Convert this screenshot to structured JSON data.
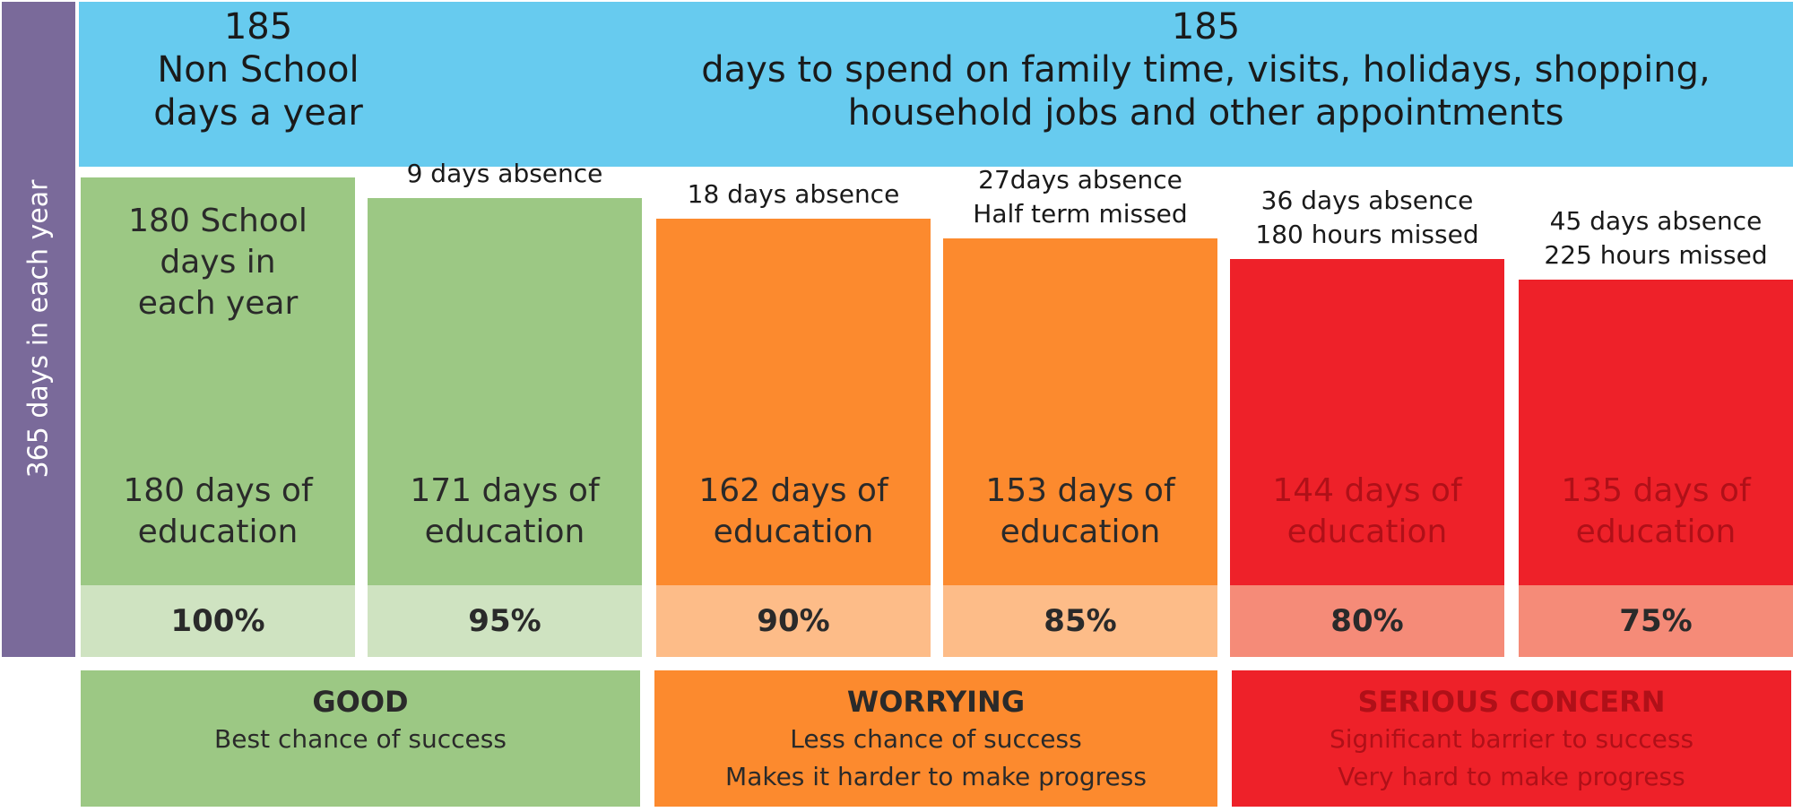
{
  "chart_data": {
    "type": "bar",
    "side_label": "365 days in each year",
    "top": {
      "left": {
        "number": "185",
        "line1": "Non School",
        "line2": "days a year"
      },
      "right": {
        "number": "185",
        "line1": "days to spend on family time, visits, holidays, shopping,",
        "line2": "household jobs and other appointments"
      }
    },
    "bars": [
      {
        "days_of_education": 180,
        "label_a": "180 days of",
        "label_b": "education",
        "pct": "100%",
        "absence_lines": [],
        "school_lines": [
          "180 School",
          "days in",
          "each year"
        ]
      },
      {
        "days_of_education": 171,
        "label_a": "171 days of",
        "label_b": "education",
        "pct": "95%",
        "absence_lines": [
          "9 days absence"
        ],
        "school_lines": []
      },
      {
        "days_of_education": 162,
        "label_a": "162 days of",
        "label_b": "education",
        "pct": "90%",
        "absence_lines": [
          "18 days absence"
        ],
        "school_lines": []
      },
      {
        "days_of_education": 153,
        "label_a": "153 days of",
        "label_b": "education",
        "pct": "85%",
        "absence_lines": [
          "27days absence",
          "Half term missed"
        ],
        "school_lines": []
      },
      {
        "days_of_education": 144,
        "label_a": "144 days of",
        "label_b": "education",
        "pct": "80%",
        "absence_lines": [
          "36 days absence",
          "180 hours missed"
        ],
        "school_lines": []
      },
      {
        "days_of_education": 135,
        "label_a": "135 days of",
        "label_b": "education",
        "pct": "75%",
        "absence_lines": [
          "45 days absence",
          "225 hours missed"
        ],
        "school_lines": []
      }
    ],
    "categories": [
      {
        "title": "GOOD",
        "line1": "Best chance of success",
        "line2": ""
      },
      {
        "title": "WORRYING",
        "line1": "Less chance of success",
        "line2": "Makes it harder to make progress"
      },
      {
        "title": "SERIOUS CONCERN",
        "line1": "Significant barrier to success",
        "line2": "Very hard to make progress"
      }
    ],
    "colors": {
      "side": "#7a6a9a",
      "top": "#67cbef",
      "green": "#9cc884",
      "green_light": "#cfe3c1",
      "orange": "#fc8a2e",
      "orange_light": "#fdbc88",
      "red": "#ee2129",
      "red_light": "#f58b78"
    }
  }
}
